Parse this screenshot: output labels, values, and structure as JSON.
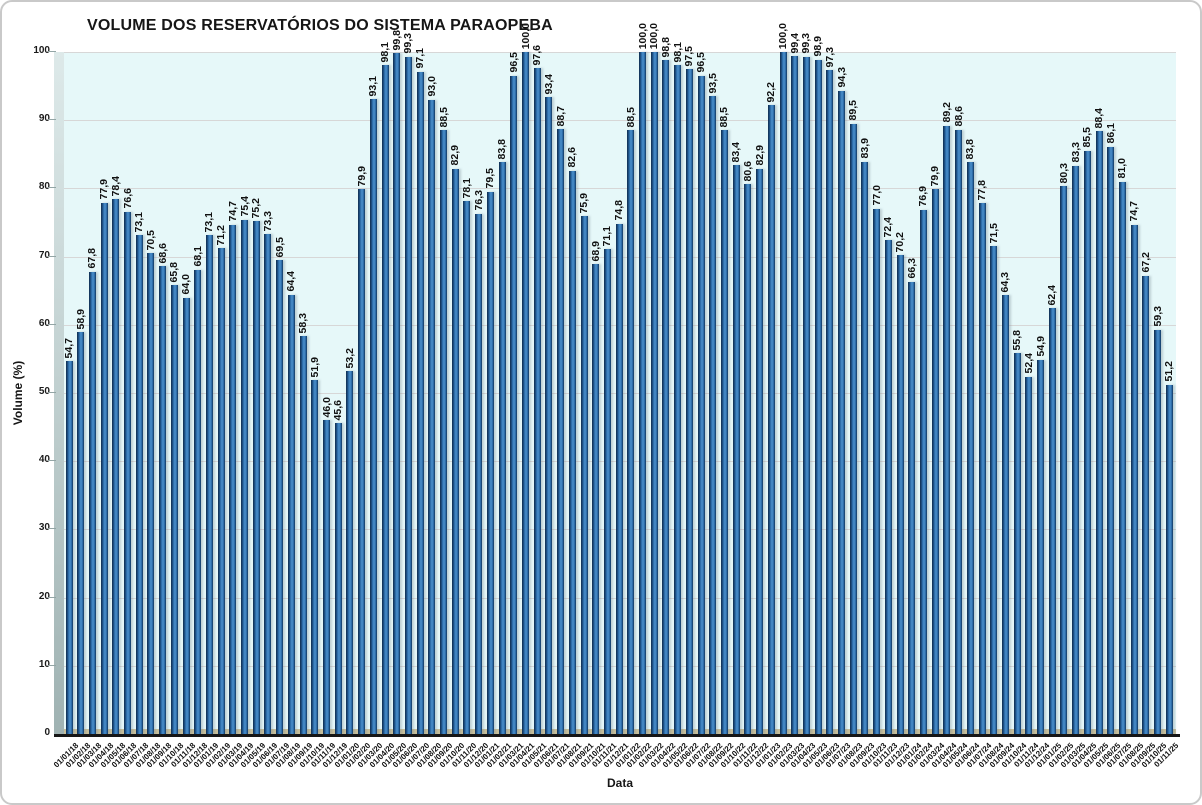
{
  "chart_data": {
    "type": "bar",
    "title": "VOLUME DOS RESERVATÓRIOS DO SISTEMA PARAOPEBA",
    "xlabel": "Data",
    "ylabel": "Volume (%)",
    "ylim": [
      0,
      100
    ],
    "yticks": [
      0,
      10,
      20,
      30,
      40,
      50,
      60,
      70,
      80,
      90,
      100
    ],
    "grid": true,
    "legend": "none",
    "value_label_decimal_separator": "comma",
    "bar_color": "#2E6DA9",
    "bar_edge_color": "#14375E",
    "plot_bg": "#E6F8F9",
    "floor_color": "#C9C09B",
    "categories": [
      "01/01/18",
      "01/02/18",
      "01/03/18",
      "01/04/18",
      "01/05/18",
      "01/06/18",
      "01/07/18",
      "01/08/18",
      "01/09/18",
      "01/10/18",
      "01/11/18",
      "01/12/18",
      "01/01/19",
      "01/02/19",
      "01/03/19",
      "01/04/19",
      "01/05/19",
      "01/06/19",
      "01/07/19",
      "01/08/19",
      "01/09/19",
      "01/10/19",
      "01/11/19",
      "01/12/19",
      "01/01/20",
      "01/02/20",
      "01/03/20",
      "01/04/20",
      "01/05/20",
      "01/06/20",
      "01/07/20",
      "01/08/20",
      "01/09/20",
      "01/10/20",
      "01/11/20",
      "01/12/20",
      "01/01/21",
      "01/02/21",
      "01/03/21",
      "01/04/21",
      "01/05/21",
      "01/06/21",
      "01/07/21",
      "01/08/21",
      "01/09/21",
      "01/10/21",
      "01/11/21",
      "01/12/21",
      "01/01/22",
      "01/02/22",
      "01/03/22",
      "01/04/22",
      "01/05/22",
      "01/06/22",
      "01/07/22",
      "01/08/22",
      "01/09/22",
      "01/10/22",
      "01/11/22",
      "01/12/22",
      "01/01/23",
      "01/02/23",
      "01/03/23",
      "01/04/23",
      "01/05/23",
      "01/06/23",
      "01/07/23",
      "01/08/23",
      "01/09/23",
      "01/10/23",
      "01/11/23",
      "01/12/23",
      "01/01/24",
      "01/02/24",
      "01/03/24",
      "01/04/24",
      "01/05/24",
      "01/06/24",
      "01/07/24",
      "01/08/24",
      "01/09/24",
      "01/10/24",
      "01/11/24",
      "01/12/24",
      "01/01/25",
      "01/02/25",
      "01/03/25",
      "01/04/25",
      "01/05/25",
      "01/06/25",
      "01/07/25",
      "01/08/25",
      "01/09/25",
      "01/10/25",
      "01/11/25"
    ],
    "values": [
      54.7,
      58.9,
      67.8,
      77.9,
      78.4,
      76.6,
      73.1,
      70.5,
      68.6,
      65.8,
      64.0,
      68.1,
      73.1,
      71.2,
      74.7,
      75.4,
      75.2,
      73.3,
      69.5,
      64.4,
      58.3,
      51.9,
      46.0,
      45.6,
      53.2,
      79.9,
      93.1,
      98.1,
      99.8,
      99.3,
      97.1,
      93.0,
      88.5,
      82.9,
      78.1,
      76.3,
      79.5,
      83.8,
      96.5,
      100.0,
      97.6,
      93.4,
      88.7,
      82.6,
      75.9,
      68.9,
      71.1,
      74.8,
      88.5,
      100.0,
      100.0,
      98.8,
      98.1,
      97.5,
      96.5,
      93.5,
      88.5,
      83.4,
      80.6,
      82.9,
      92.2,
      100.0,
      99.4,
      99.3,
      98.9,
      97.3,
      94.3,
      89.5,
      83.9,
      77.0,
      72.4,
      70.2,
      66.3,
      76.9,
      79.9,
      89.2,
      88.6,
      83.8,
      77.8,
      71.5,
      64.3,
      55.8,
      52.4,
      54.9,
      62.4,
      80.3,
      83.3,
      85.5,
      88.4,
      86.1,
      81.0,
      74.7,
      67.2,
      59.3,
      51.2
    ]
  }
}
